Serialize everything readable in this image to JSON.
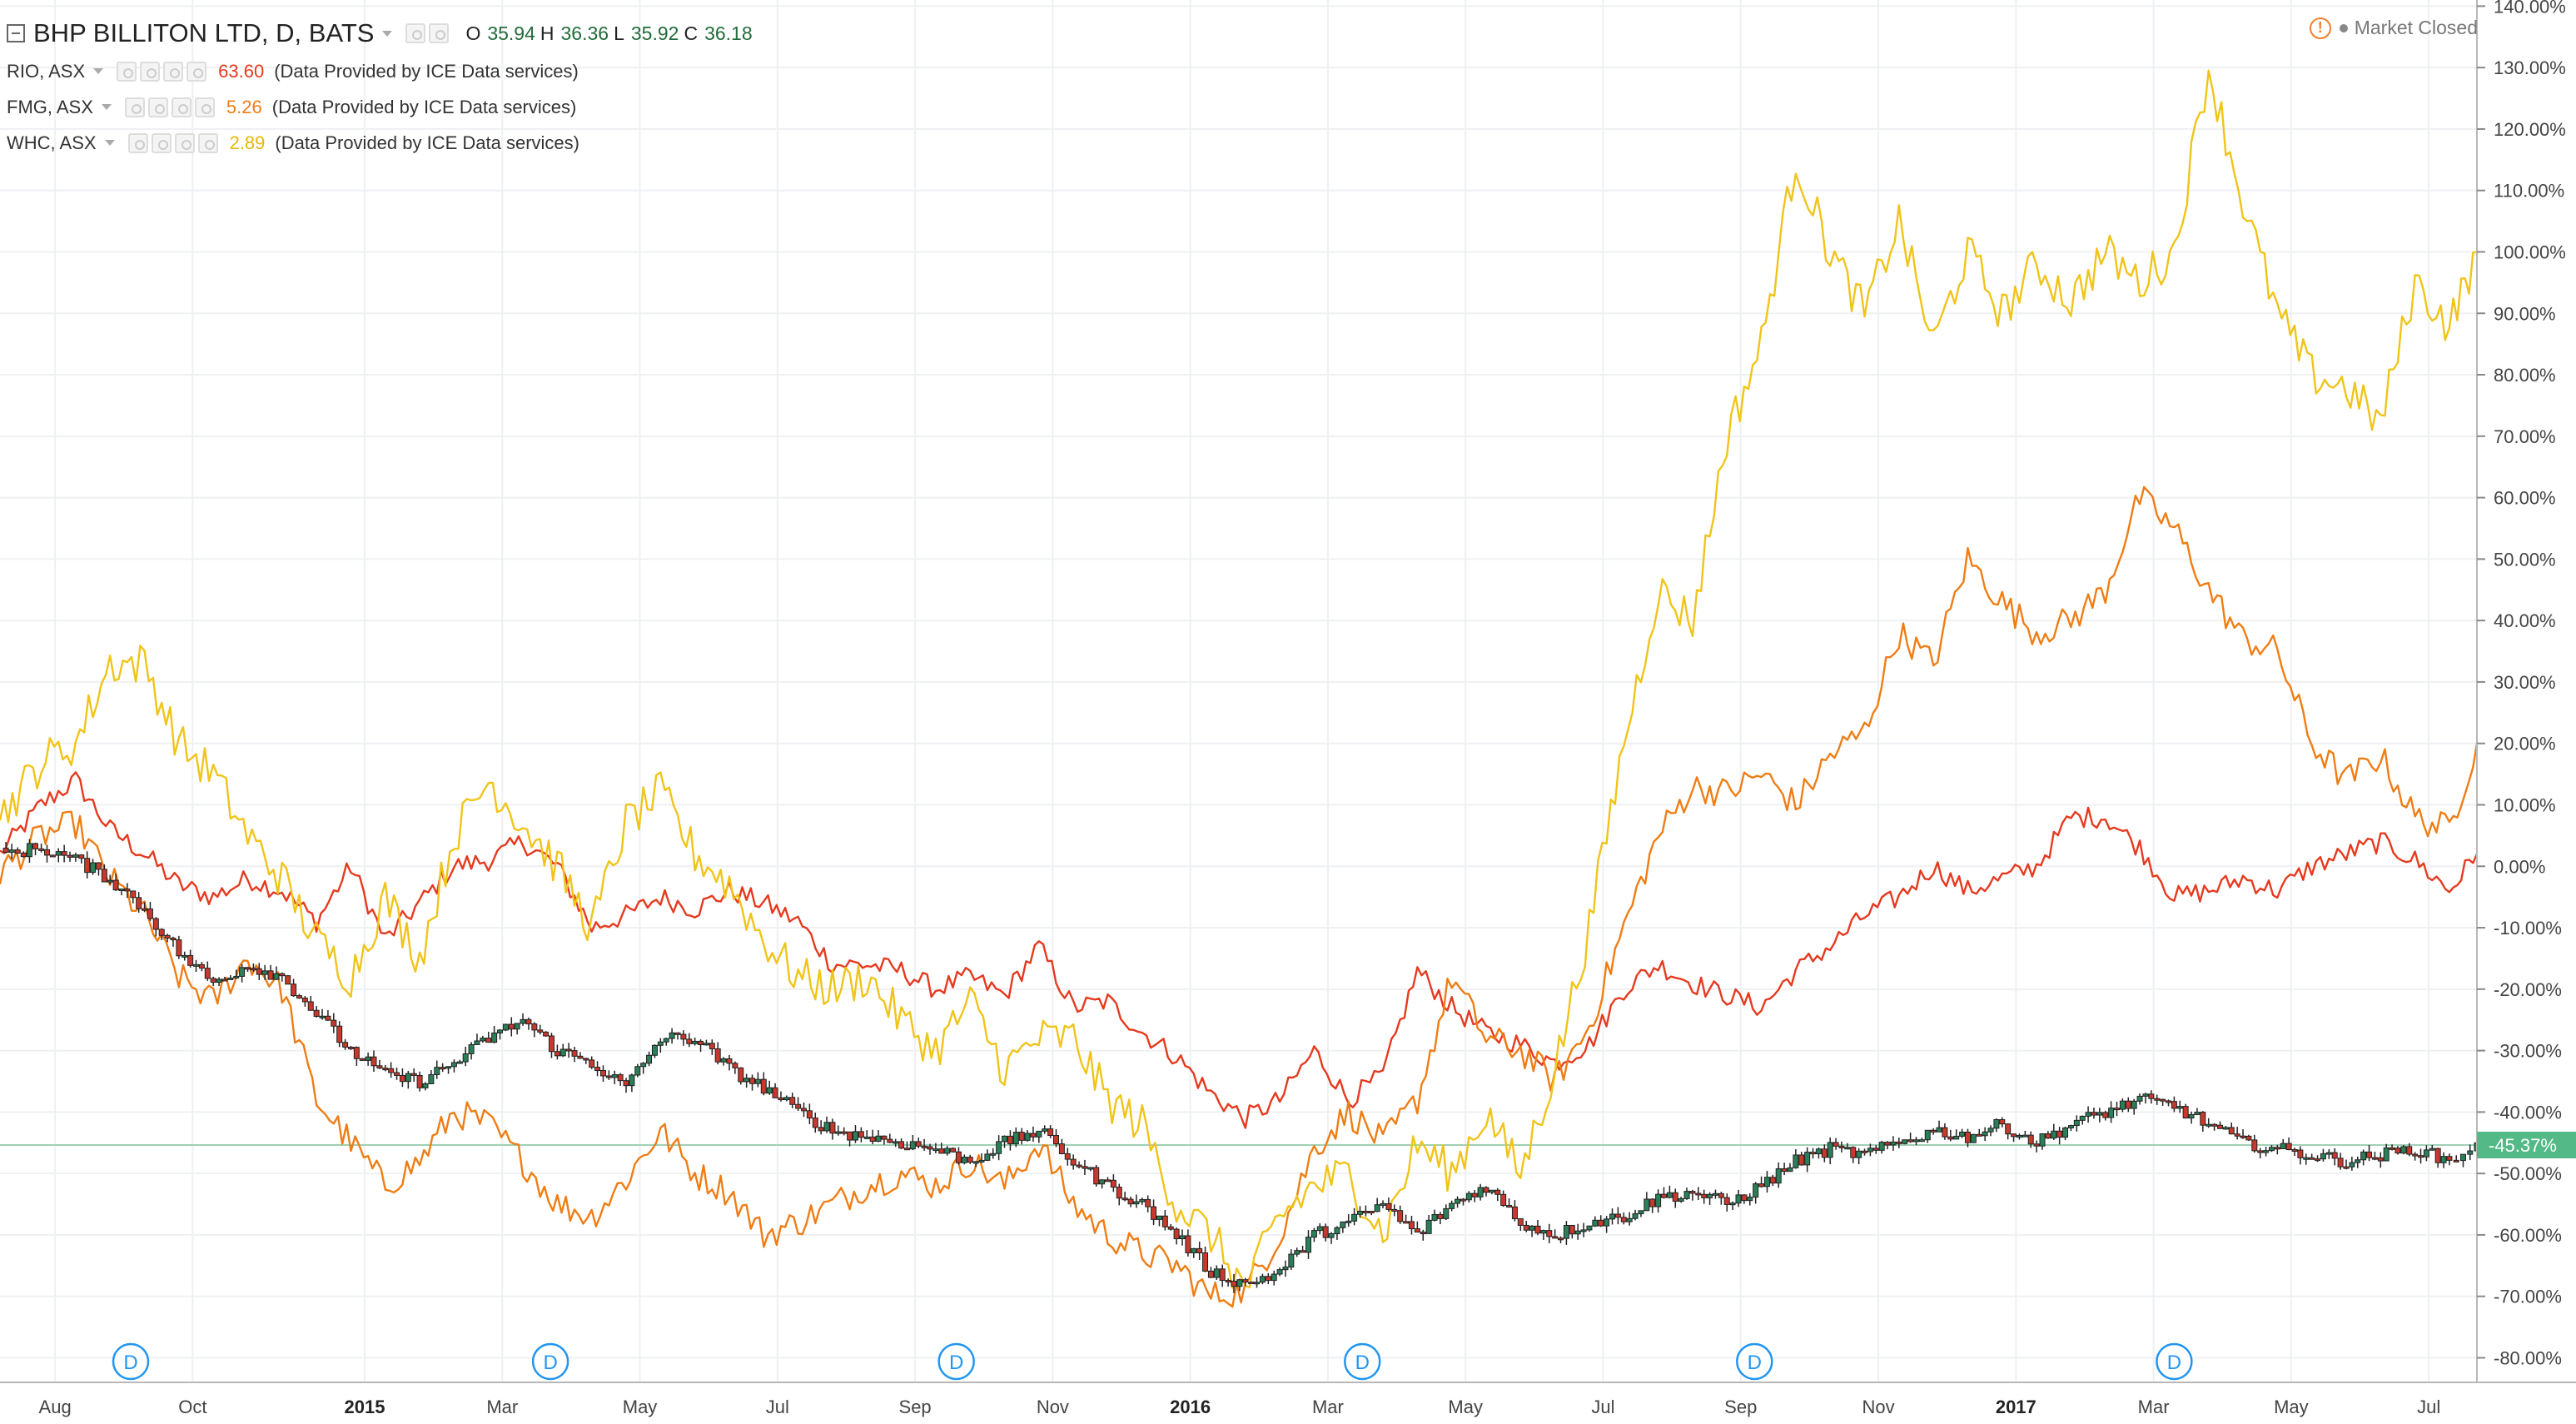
{
  "legend": {
    "main": {
      "symbol": "BHP BILLITON LTD, D, BATS",
      "o_label": "O",
      "o": "35.94",
      "h_label": "H",
      "h": "36.36",
      "l_label": "L",
      "l": "35.92",
      "c_label": "C",
      "c": "36.18"
    },
    "overlays": [
      {
        "symbol": "RIO, ASX",
        "value": "63.60",
        "note": "(Data Provided by ICE Data services)",
        "color": "#e53a1f"
      },
      {
        "symbol": "FMG, ASX",
        "value": "5.26",
        "note": "(Data Provided by ICE Data services)",
        "color": "#ef7d14"
      },
      {
        "symbol": "WHC, ASX",
        "value": "2.89",
        "note": "(Data Provided by ICE Data services)",
        "color": "#e5b80b"
      }
    ]
  },
  "status": {
    "market": "Market Closed",
    "warning_icon": "!"
  },
  "last_value_badge": "-45.37%",
  "dividend_marker": "D",
  "chart_data": {
    "type": "line",
    "yunit": "%",
    "ylim": [
      -84,
      141
    ],
    "y_ticks": [
      "140.00%",
      "130.00%",
      "120.00%",
      "110.00%",
      "100.00%",
      "90.00%",
      "80.00%",
      "70.00%",
      "60.00%",
      "50.00%",
      "40.00%",
      "30.00%",
      "20.00%",
      "10.00%",
      "0.00%",
      "-10.00%",
      "-20.00%",
      "-30.00%",
      "-40.00%",
      "-50.00%",
      "-60.00%",
      "-70.00%",
      "-80.00%"
    ],
    "x_ticks": [
      "Aug",
      "Oct",
      "2015",
      "Mar",
      "May",
      "Jul",
      "Sep",
      "Nov",
      "2016",
      "Mar",
      "May",
      "Jul",
      "Sep",
      "Nov",
      "2017",
      "Mar",
      "May",
      "Jul"
    ],
    "x_tick_pos": [
      0.5,
      2.5,
      5,
      7,
      9,
      11,
      13,
      15,
      17,
      19,
      21,
      23,
      25,
      27,
      29,
      31,
      33,
      35
    ],
    "xlim": [
      -0.3,
      35.7
    ],
    "dividend_pos": [
      1.6,
      7.7,
      13.6,
      19.5,
      25.2,
      31.3
    ],
    "current_line": -45.37,
    "grid": true,
    "series": [
      {
        "name": "RIO, ASX",
        "color": "#e53a1f",
        "x": [
          -0.3,
          0.3,
          0.8,
          1.3,
          1.8,
          2.3,
          2.8,
          3.3,
          3.8,
          4.3,
          4.8,
          5.3,
          5.8,
          6.3,
          6.8,
          7.3,
          7.8,
          8.3,
          8.8,
          9.3,
          9.8,
          10.3,
          10.8,
          11.3,
          11.8,
          12.3,
          12.8,
          13.3,
          13.8,
          14.3,
          14.8,
          15.3,
          15.8,
          16.3,
          16.8,
          17.3,
          17.8,
          18.3,
          18.8,
          19.3,
          19.8,
          20.3,
          20.8,
          21.3,
          21.8,
          22.3,
          22.8,
          23.3,
          23.8,
          24.3,
          24.8,
          25.3,
          25.8,
          26.3,
          26.8,
          27.3,
          27.8,
          28.3,
          28.8,
          29.3,
          29.8,
          30.3,
          30.8,
          31.3,
          31.8,
          32.3,
          32.8,
          33.3,
          33.8,
          34.3,
          34.8,
          35.3,
          35.7
        ],
        "y": [
          2,
          10,
          14,
          6,
          2,
          -3,
          -5,
          -2,
          -4,
          -9,
          0,
          -12,
          -6,
          0,
          1,
          4,
          0,
          -10,
          -8,
          -5,
          -7,
          -4,
          -6,
          -9,
          -16,
          -16,
          -17,
          -20,
          -18,
          -21,
          -13,
          -23,
          -22,
          -27,
          -31,
          -37,
          -41,
          -38,
          -30,
          -38,
          -34,
          -17,
          -23,
          -27,
          -29,
          -32,
          -29,
          -20,
          -16,
          -19,
          -21,
          -23,
          -17,
          -13,
          -8,
          -5,
          0,
          -4,
          -2,
          0,
          8,
          8,
          3,
          -5,
          -4,
          -2,
          -4,
          0,
          2,
          4,
          1,
          -4,
          2
        ]
      },
      {
        "name": "FMG, ASX",
        "color": "#ef7d14",
        "x": [
          -0.3,
          0.3,
          0.8,
          1.3,
          1.8,
          2.3,
          2.8,
          3.3,
          3.8,
          4.3,
          4.8,
          5.3,
          5.8,
          6.3,
          6.8,
          7.3,
          7.8,
          8.3,
          8.8,
          9.3,
          9.8,
          10.3,
          10.8,
          11.3,
          11.8,
          12.3,
          12.8,
          13.3,
          13.8,
          14.3,
          14.8,
          15.3,
          15.8,
          16.3,
          16.8,
          17.3,
          17.8,
          18.3,
          18.8,
          19.3,
          19.8,
          20.3,
          20.8,
          21.3,
          21.8,
          22.3,
          22.8,
          23.3,
          23.8,
          24.3,
          24.8,
          25.3,
          25.8,
          26.3,
          26.8,
          27.3,
          27.8,
          28.3,
          28.8,
          29.3,
          29.8,
          30.3,
          30.8,
          31.3,
          31.8,
          32.3,
          32.8,
          33.3,
          33.8,
          34.3,
          34.8,
          35.3,
          35.7
        ],
        "y": [
          -1,
          5,
          7,
          -2,
          -8,
          -18,
          -22,
          -15,
          -20,
          -38,
          -45,
          -52,
          -48,
          -40,
          -42,
          -48,
          -55,
          -57,
          -51,
          -43,
          -50,
          -53,
          -60,
          -58,
          -55,
          -52,
          -50,
          -52,
          -48,
          -52,
          -45,
          -55,
          -60,
          -63,
          -65,
          -70,
          -69,
          -60,
          -46,
          -40,
          -45,
          -38,
          -18,
          -28,
          -30,
          -35,
          -26,
          -10,
          5,
          13,
          12,
          15,
          10,
          18,
          22,
          38,
          33,
          50,
          43,
          38,
          40,
          45,
          60,
          55,
          45,
          37,
          35,
          20,
          14,
          18,
          8,
          6,
          20
        ]
      },
      {
        "name": "WHC, ASX",
        "color": "#f0c419",
        "x": [
          -0.3,
          0.3,
          0.8,
          1.3,
          1.8,
          2.3,
          2.8,
          3.3,
          3.8,
          4.3,
          4.8,
          5.3,
          5.8,
          6.3,
          6.8,
          7.3,
          7.8,
          8.3,
          8.8,
          9.3,
          9.8,
          10.3,
          10.8,
          11.3,
          11.8,
          12.3,
          12.8,
          13.3,
          13.8,
          14.3,
          14.8,
          15.3,
          15.8,
          16.3,
          16.8,
          17.3,
          17.8,
          18.3,
          18.8,
          19.3,
          19.8,
          20.3,
          20.8,
          21.3,
          21.8,
          22.3,
          22.8,
          23.3,
          23.8,
          24.3,
          24.8,
          25.3,
          25.8,
          26.3,
          26.8,
          27.3,
          27.8,
          28.3,
          28.8,
          29.3,
          29.8,
          30.3,
          30.8,
          31.3,
          31.8,
          32.3,
          32.8,
          33.3,
          33.8,
          34.3,
          34.8,
          35.3,
          35.7
        ],
        "y": [
          8,
          17,
          20,
          33,
          33,
          20,
          15,
          5,
          -2,
          -12,
          -18,
          -5,
          -15,
          5,
          14,
          7,
          0,
          -10,
          7,
          12,
          2,
          -3,
          -12,
          -18,
          -20,
          -18,
          -25,
          -30,
          -22,
          -33,
          -28,
          -28,
          -38,
          -42,
          -55,
          -60,
          -69,
          -57,
          -52,
          -50,
          -60,
          -45,
          -50,
          -40,
          -50,
          -33,
          -10,
          20,
          45,
          40,
          70,
          85,
          115,
          100,
          90,
          105,
          85,
          100,
          90,
          98,
          92,
          100,
          95,
          100,
          130,
          108,
          90,
          80,
          78,
          72,
          95,
          88,
          100
        ]
      },
      {
        "name": "BHP BILLITON LTD, D, BATS",
        "color": "#1f3b2a",
        "candles": true,
        "x": [
          -0.3,
          0.3,
          0.8,
          1.3,
          1.8,
          2.3,
          2.8,
          3.3,
          3.8,
          4.3,
          4.8,
          5.3,
          5.8,
          6.3,
          6.8,
          7.3,
          7.8,
          8.3,
          8.8,
          9.3,
          9.8,
          10.3,
          10.8,
          11.3,
          11.8,
          12.3,
          12.8,
          13.3,
          13.8,
          14.3,
          14.8,
          15.3,
          15.8,
          16.3,
          16.8,
          17.3,
          17.8,
          18.3,
          18.8,
          19.3,
          19.8,
          20.3,
          20.8,
          21.3,
          21.8,
          22.3,
          22.8,
          23.3,
          23.8,
          24.3,
          24.8,
          25.3,
          25.8,
          26.3,
          26.8,
          27.3,
          27.8,
          28.3,
          28.8,
          29.3,
          29.8,
          30.3,
          30.8,
          31.3,
          31.8,
          32.3,
          32.8,
          33.3,
          33.8,
          34.3,
          34.8,
          35.3,
          35.7
        ],
        "y": [
          2,
          3,
          1,
          -2,
          -7,
          -14,
          -19,
          -16,
          -18,
          -24,
          -30,
          -34,
          -35,
          -32,
          -28,
          -25,
          -30,
          -32,
          -36,
          -28,
          -28,
          -33,
          -36,
          -40,
          -43,
          -44,
          -45,
          -46,
          -48,
          -45,
          -43,
          -48,
          -52,
          -55,
          -60,
          -66,
          -68,
          -66,
          -60,
          -58,
          -55,
          -60,
          -55,
          -52,
          -58,
          -60,
          -58,
          -57,
          -54,
          -53,
          -55,
          -52,
          -48,
          -46,
          -47,
          -45,
          -43,
          -44,
          -42,
          -45,
          -42,
          -40,
          -38,
          -39,
          -42,
          -45,
          -46,
          -47,
          -48,
          -47,
          -46,
          -48,
          -45
        ]
      }
    ]
  }
}
